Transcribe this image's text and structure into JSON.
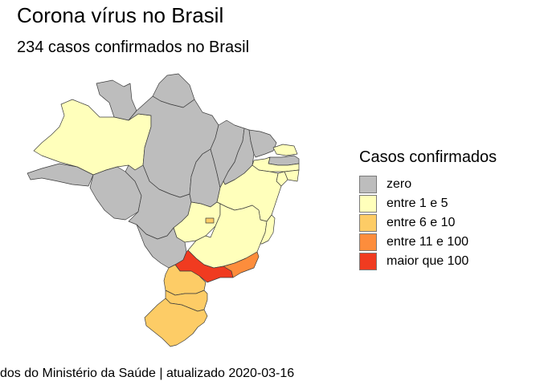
{
  "title": "Corona vírus no Brasil",
  "subtitle": "234 casos confirmados no Brasil",
  "caption": "dos do Ministério da Saúde | atualizado 2020-03-16",
  "legend": {
    "title": "Casos confirmados",
    "items": [
      {
        "label": "zero",
        "color": "#bdbdbd"
      },
      {
        "label": "entre 1 e 5",
        "color": "#ffffbb"
      },
      {
        "label": "entre 6 e 10",
        "color": "#fdcc66"
      },
      {
        "label": "entre 11 e 100",
        "color": "#fd8d3c"
      },
      {
        "label": "maior que 100",
        "color": "#f03b20"
      }
    ]
  },
  "states": [
    {
      "id": "RR",
      "category": 0
    },
    {
      "id": "AP",
      "category": 0
    },
    {
      "id": "AM",
      "category": 1
    },
    {
      "id": "PA",
      "category": 0
    },
    {
      "id": "AC",
      "category": 0
    },
    {
      "id": "RO",
      "category": 0
    },
    {
      "id": "MT",
      "category": 0
    },
    {
      "id": "TO",
      "category": 0
    },
    {
      "id": "MA",
      "category": 0
    },
    {
      "id": "PI",
      "category": 0
    },
    {
      "id": "CE",
      "category": 0
    },
    {
      "id": "RN",
      "category": 1
    },
    {
      "id": "PB",
      "category": 0
    },
    {
      "id": "PE",
      "category": 1
    },
    {
      "id": "AL",
      "category": 1
    },
    {
      "id": "SE",
      "category": 1
    },
    {
      "id": "BA",
      "category": 1
    },
    {
      "id": "GO",
      "category": 1
    },
    {
      "id": "DF",
      "category": 2
    },
    {
      "id": "MS",
      "category": 0
    },
    {
      "id": "MG",
      "category": 1
    },
    {
      "id": "ES",
      "category": 1
    },
    {
      "id": "SP",
      "category": 4
    },
    {
      "id": "RJ",
      "category": 3
    },
    {
      "id": "PR",
      "category": 2
    },
    {
      "id": "SC",
      "category": 2
    },
    {
      "id": "RS",
      "category": 2
    }
  ]
}
